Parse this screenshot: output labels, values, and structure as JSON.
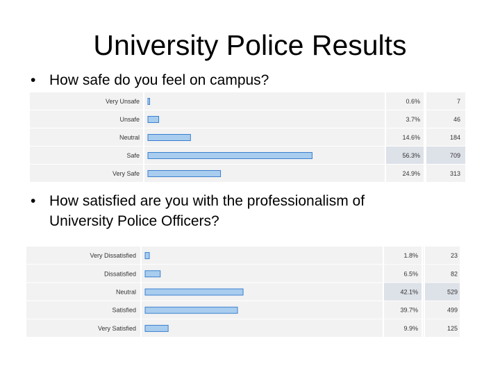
{
  "title": "University Police Results",
  "bullet_glyph": "•",
  "questions": [
    {
      "text_lines": [
        "How safe do you feel on campus?"
      ]
    },
    {
      "text_lines": [
        "How satisfied are you with the professionalism of",
        "University Police Officers?"
      ]
    }
  ],
  "chart_data": [
    {
      "type": "bar",
      "orientation": "horizontal",
      "categories": [
        "Very Unsafe",
        "Unsafe",
        "Neutral",
        "Safe",
        "Very Safe"
      ],
      "values": [
        0.6,
        3.7,
        14.6,
        56.3,
        24.9
      ],
      "percent_labels": [
        "0.6%",
        "3.7%",
        "14.6%",
        "56.3%",
        "24.9%"
      ],
      "counts": [
        7,
        46,
        184,
        709,
        313
      ],
      "highlight_index": 3
    },
    {
      "type": "bar",
      "orientation": "horizontal",
      "categories": [
        "Very Dissatisfied",
        "Dissatisfied",
        "Neutral",
        "Satisfied",
        "Very Satisfied"
      ],
      "values": [
        1.8,
        6.5,
        42.1,
        39.7,
        9.9
      ],
      "percent_labels": [
        "1.8%",
        "6.5%",
        "42.1%",
        "39.7%",
        "9.9%"
      ],
      "counts": [
        23,
        82,
        529,
        499,
        125
      ],
      "highlight_index": 2
    }
  ],
  "colors": {
    "row_bg": "#f2f2f2",
    "row_highlight": "#dde1e8",
    "bar_fill": "#a9cdee",
    "bar_stroke": "#3a7fcf",
    "divider": "#ffffff"
  }
}
